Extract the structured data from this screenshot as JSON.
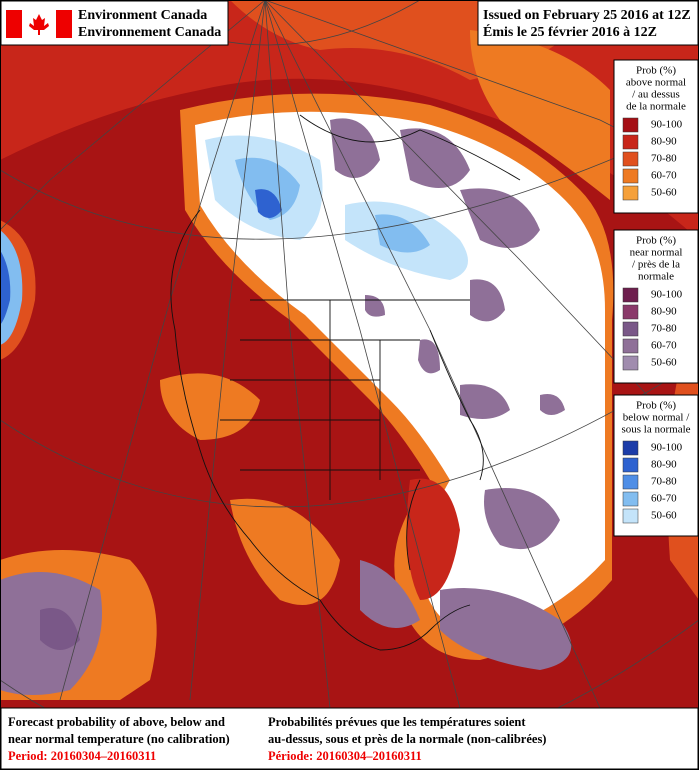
{
  "header": {
    "agency_en": "Environment Canada",
    "agency_fr": "Environnement Canada",
    "issued_en": "Issued on February 25 2016 at 12Z",
    "issued_fr": "Émis le 25 février 2016 à 12Z"
  },
  "legends": [
    {
      "title": [
        "Prob (%)",
        "above normal",
        "/ au dessus",
        "de la normale"
      ],
      "items": [
        "90-100",
        "80-90",
        "70-80",
        "60-70",
        "50-60"
      ],
      "colors": [
        "#a50f15",
        "#c8261a",
        "#e0501e",
        "#ee7a22",
        "#f5a03a"
      ]
    },
    {
      "title": [
        "Prob (%)",
        "near normal",
        "/ près de la",
        "normale"
      ],
      "items": [
        "90-100",
        "80-90",
        "70-80",
        "60-70",
        "50-60"
      ],
      "colors": [
        "#6e1f4e",
        "#8a3a6a",
        "#7a5888",
        "#8f7098",
        "#a08cae"
      ]
    },
    {
      "title": [
        "Prob (%)",
        "below normal /",
        "sous la normale"
      ],
      "items": [
        "90-100",
        "80-90",
        "70-80",
        "60-70",
        "50-60"
      ],
      "colors": [
        "#1c3ca8",
        "#2e62d0",
        "#4f8ee6",
        "#82bdf0",
        "#c4e4fa"
      ]
    }
  ],
  "footer": {
    "desc_en": [
      "Forecast probability of above, below and",
      "near normal temperature (no calibration)"
    ],
    "period_en": "Period: 20160304–20160311",
    "desc_fr": [
      "Probabilités prévues que les températures soient",
      "au-dessus, sous et près de la normale (non-calibrées)"
    ],
    "period_fr": "Période: 20160304–20160311"
  }
}
